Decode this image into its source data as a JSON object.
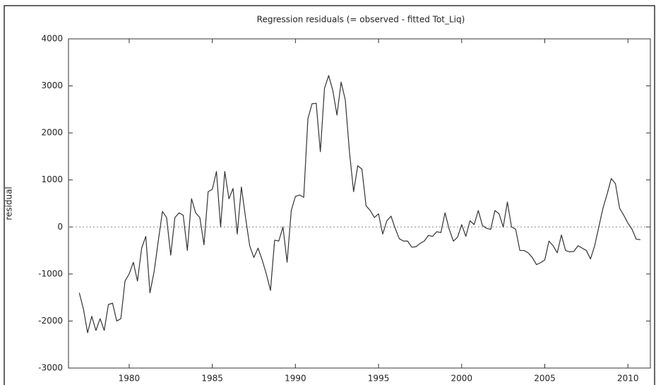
{
  "chart_data": {
    "type": "line",
    "title": "Regression residuals (= observed - fitted Tot_Liq)",
    "y_label": "residual",
    "x": [
      1977,
      1977.25,
      1977.5,
      1977.75,
      1978,
      1978.25,
      1978.5,
      1978.75,
      1979,
      1979.25,
      1979.5,
      1979.75,
      1980,
      1980.25,
      1980.5,
      1980.75,
      1981,
      1981.25,
      1981.5,
      1981.75,
      1982,
      1982.25,
      1982.5,
      1982.75,
      1983,
      1983.25,
      1983.5,
      1983.75,
      1984,
      1984.25,
      1984.5,
      1984.75,
      1985,
      1985.25,
      1985.5,
      1985.75,
      1986,
      1986.25,
      1986.5,
      1986.75,
      1987,
      1987.25,
      1987.5,
      1987.75,
      1988,
      1988.25,
      1988.5,
      1988.75,
      1989,
      1989.25,
      1989.5,
      1989.75,
      1990,
      1990.25,
      1990.5,
      1990.75,
      1991,
      1991.25,
      1991.5,
      1991.75,
      1992,
      1992.25,
      1992.5,
      1992.75,
      1993,
      1993.25,
      1993.5,
      1993.75,
      1994,
      1994.25,
      1994.5,
      1994.75,
      1995,
      1995.25,
      1995.5,
      1995.75,
      1996,
      1996.25,
      1996.5,
      1996.75,
      1997,
      1997.25,
      1997.5,
      1997.75,
      1998,
      1998.25,
      1998.5,
      1998.75,
      1999,
      1999.25,
      1999.5,
      1999.75,
      2000,
      2000.25,
      2000.5,
      2000.75,
      2001,
      2001.25,
      2001.5,
      2001.75,
      2002,
      2002.25,
      2002.5,
      2002.75,
      2003,
      2003.25,
      2003.5,
      2003.75,
      2004,
      2004.25,
      2004.5,
      2004.75,
      2005,
      2005.25,
      2005.5,
      2005.75,
      2006,
      2006.25,
      2006.5,
      2006.75,
      2007,
      2007.25,
      2007.5,
      2007.75,
      2008,
      2008.25,
      2008.5,
      2008.75,
      2009,
      2009.25,
      2009.5,
      2009.75,
      2010,
      2010.25,
      2010.5,
      2010.75
    ],
    "series": [
      {
        "name": "residual",
        "color": "#333333",
        "values": [
          -1400,
          -1750,
          -2250,
          -1900,
          -2200,
          -1950,
          -2200,
          -1650,
          -1620,
          -2000,
          -1950,
          -1150,
          -1000,
          -750,
          -1150,
          -450,
          -200,
          -1400,
          -950,
          -300,
          330,
          200,
          -600,
          200,
          300,
          250,
          -500,
          600,
          300,
          200,
          -380,
          750,
          800,
          1180,
          0,
          1180,
          600,
          820,
          -150,
          850,
          200,
          -400,
          -650,
          -450,
          -700,
          -1000,
          -1350,
          -280,
          -300,
          0,
          -750,
          350,
          650,
          680,
          630,
          2300,
          2620,
          2630,
          1600,
          2950,
          3220,
          2900,
          2380,
          3080,
          2700,
          1600,
          750,
          1300,
          1230,
          450,
          350,
          200,
          280,
          -150,
          130,
          230,
          -30,
          -250,
          -300,
          -300,
          -430,
          -420,
          -350,
          -300,
          -180,
          -200,
          -100,
          -120,
          300,
          -50,
          -300,
          -220,
          50,
          -200,
          130,
          50,
          350,
          30,
          -30,
          -50,
          350,
          280,
          0,
          530,
          0,
          -50,
          -500,
          -500,
          -550,
          -650,
          -800,
          -760,
          -700,
          -300,
          -400,
          -550,
          -170,
          -500,
          -530,
          -520,
          -400,
          -450,
          -500,
          -680,
          -400,
          0,
          400,
          700,
          1030,
          920,
          400,
          250,
          80,
          -50,
          -260,
          -270
        ]
      }
    ],
    "xlim": [
      1976.35,
      2011.35
    ],
    "xticks": [
      1980,
      1985,
      1990,
      1995,
      2000,
      2005,
      2010
    ],
    "ylim": [
      -3000,
      4000
    ],
    "yticks": [
      -3000,
      -2000,
      -1000,
      0,
      1000,
      2000,
      3000,
      4000
    ],
    "zero_line": true,
    "grid": false
  }
}
